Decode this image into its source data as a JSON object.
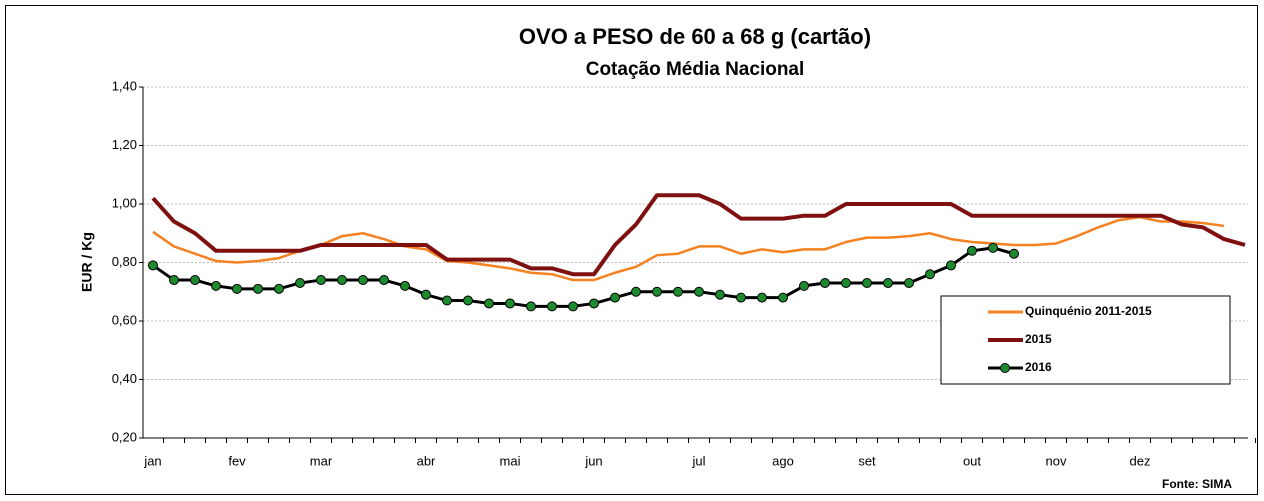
{
  "chart_data": {
    "type": "line",
    "title": "OVO a PESO de 60 a 68 g (cartão)",
    "subtitle": "Cotação Média Nacional",
    "y_label": "EUR / Kg",
    "source": "Fonte: SIMA",
    "categories": [
      "jan",
      null,
      null,
      null,
      "fev",
      null,
      null,
      null,
      "mar",
      null,
      null,
      null,
      null,
      "abr",
      null,
      null,
      null,
      "mai",
      null,
      null,
      null,
      "jun",
      null,
      null,
      null,
      null,
      "jul",
      null,
      null,
      null,
      "ago",
      null,
      null,
      null,
      "set",
      null,
      null,
      null,
      null,
      "out",
      null,
      null,
      null,
      "nov",
      null,
      null,
      null,
      "dez",
      null,
      null,
      null,
      null,
      null
    ],
    "ylim": [
      0.2,
      1.4
    ],
    "yticks": [
      {
        "value": 0.2,
        "label": "0,20"
      },
      {
        "value": 0.4,
        "label": "0,40"
      },
      {
        "value": 0.6,
        "label": "0,60"
      },
      {
        "value": 0.8,
        "label": "0,80"
      },
      {
        "value": 1.0,
        "label": "1,00"
      },
      {
        "value": 1.2,
        "label": "1,20"
      },
      {
        "value": 1.4,
        "label": "1,40"
      }
    ],
    "grid": true,
    "legend": "lower right",
    "series": [
      {
        "name": "Quinquénio 2011-2015",
        "color": "#f58220",
        "marker": false,
        "values": [
          0.905,
          0.855,
          0.83,
          0.805,
          0.8,
          0.805,
          0.815,
          0.84,
          0.86,
          0.89,
          0.9,
          0.88,
          0.855,
          0.845,
          0.805,
          0.8,
          0.79,
          0.78,
          0.765,
          0.76,
          0.74,
          0.74,
          0.765,
          0.785,
          0.825,
          0.83,
          0.855,
          0.855,
          0.83,
          0.845,
          0.835,
          0.845,
          0.845,
          0.87,
          0.885,
          0.885,
          0.89,
          0.9,
          0.88,
          0.87,
          0.865,
          0.86,
          0.86,
          0.865,
          0.89,
          0.92,
          0.945,
          0.955,
          0.94,
          0.94,
          0.935,
          0.925,
          null
        ]
      },
      {
        "name": "2015",
        "color": "#7f1010",
        "marker": false,
        "values": [
          1.02,
          0.94,
          0.9,
          0.84,
          0.84,
          0.84,
          0.84,
          0.84,
          0.86,
          0.86,
          0.86,
          0.86,
          0.86,
          0.86,
          0.81,
          0.81,
          0.81,
          0.81,
          0.78,
          0.78,
          0.76,
          0.76,
          0.86,
          0.93,
          1.03,
          1.03,
          1.03,
          1.0,
          0.95,
          0.95,
          0.95,
          0.96,
          0.96,
          1.0,
          1.0,
          1.0,
          1.0,
          1.0,
          1.0,
          0.96,
          0.96,
          0.96,
          0.96,
          0.96,
          0.96,
          0.96,
          0.96,
          0.96,
          0.96,
          0.93,
          0.92,
          0.88,
          0.86
        ]
      },
      {
        "name": "2016",
        "color": "#000000",
        "marker": true,
        "marker_color": "#1e8a2e",
        "values": [
          0.79,
          0.74,
          0.74,
          0.72,
          0.71,
          0.71,
          0.71,
          0.73,
          0.74,
          0.74,
          0.74,
          0.74,
          0.72,
          0.69,
          0.67,
          0.67,
          0.66,
          0.66,
          0.65,
          0.65,
          0.65,
          0.66,
          0.68,
          0.7,
          0.7,
          0.7,
          0.7,
          0.69,
          0.68,
          0.68,
          0.68,
          0.72,
          0.73,
          0.73,
          0.73,
          0.73,
          0.73,
          0.76,
          0.79,
          0.84,
          0.85,
          0.83,
          null,
          null,
          null,
          null,
          null,
          null,
          null,
          null,
          null,
          null,
          null
        ]
      }
    ]
  }
}
